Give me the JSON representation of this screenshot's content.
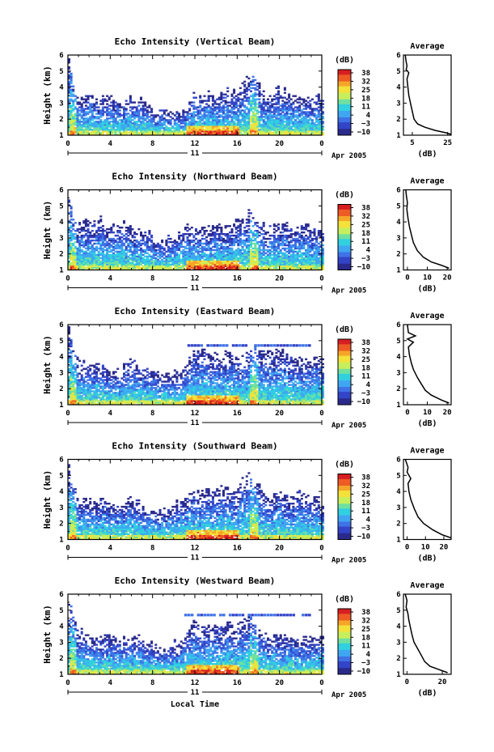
{
  "common": {
    "ylabel": "Height (km)",
    "heights": [
      1,
      2,
      3,
      4,
      5,
      6
    ],
    "height_tick_labels": [
      "1",
      "2",
      "3",
      "4",
      "5",
      "6"
    ],
    "time_ticks": [
      0,
      4,
      8,
      12,
      16,
      20,
      24
    ],
    "time_tick_labels": [
      "0",
      "4",
      "8",
      "12",
      "16",
      "20",
      "0"
    ],
    "day_label": "11",
    "month_label": "Apr 2005",
    "unit_label": "(dB)",
    "colorbar_ticks": [
      "38",
      "32",
      "25",
      "18",
      "11",
      "4",
      "−3",
      "−10"
    ],
    "colormap": [
      "#2a2a8c",
      "#3344c8",
      "#3f72e6",
      "#3fa6f2",
      "#2fd0e0",
      "#6fe0a0",
      "#c7ef5c",
      "#f4e13a",
      "#f6a529",
      "#ee5a23",
      "#d71d20"
    ],
    "average_title": "Average",
    "average_xlabel": "(dB)",
    "xlabel_bottom": "Local Time"
  },
  "chart_data": [
    {
      "type": "heatmap",
      "title": "Echo Intensity (Vertical Beam)",
      "xlabel": "",
      "ylabel": "Height (km)",
      "x_unit": "hour (local time, 11 Apr 2005)",
      "xlim": [
        0,
        24
      ],
      "ylim": [
        1,
        6
      ],
      "clim": [
        -10,
        38
      ],
      "profile": {
        "type": "line",
        "title": "Average",
        "xlabel": "(dB)",
        "x_ticks": [
          5,
          25
        ],
        "xlim": [
          0,
          27
        ],
        "ylim": [
          1,
          6
        ],
        "points": [
          [
            27,
            1.05
          ],
          [
            24,
            1.15
          ],
          [
            18,
            1.3
          ],
          [
            12,
            1.5
          ],
          [
            8,
            1.7
          ],
          [
            6,
            2
          ],
          [
            5,
            2.5
          ],
          [
            4,
            3
          ],
          [
            3,
            3.5
          ],
          [
            2.5,
            4
          ],
          [
            2,
            4.5
          ],
          [
            3,
            4.9
          ],
          [
            1.5,
            5.1
          ],
          [
            2,
            5.3
          ],
          [
            1.5,
            5.6
          ],
          [
            1,
            6
          ]
        ]
      },
      "envelope": {
        "base_hours": [
          0,
          0.5,
          1,
          2,
          3,
          4,
          5,
          6,
          7,
          8,
          9,
          10,
          11,
          12,
          13,
          14,
          15,
          16,
          17,
          18,
          19,
          20,
          21,
          22,
          23,
          24
        ],
        "top_km": [
          6,
          4.2,
          3.4,
          3.5,
          3.3,
          3.4,
          3,
          3.3,
          3.2,
          2.4,
          2.6,
          2.5,
          2.3,
          3.5,
          3.7,
          3.4,
          3.8,
          3.7,
          4.8,
          4.1,
          3.4,
          3.9,
          3.6,
          3.4,
          3.2,
          3.4
        ],
        "peak_hours": [
          0.4,
          17.5
        ],
        "strong_band_hours": [
          11,
          16
        ]
      }
    },
    {
      "type": "heatmap",
      "title": "Echo Intensity (Northward Beam)",
      "xlabel": "",
      "ylabel": "Height (km)",
      "x_unit": "hour (local time, 11 Apr 2005)",
      "xlim": [
        0,
        24
      ],
      "ylim": [
        1,
        6
      ],
      "clim": [
        -10,
        38
      ],
      "profile": {
        "type": "line",
        "title": "Average",
        "xlabel": "(dB)",
        "x_ticks": [
          0,
          10,
          20
        ],
        "xlim": [
          -2,
          22
        ],
        "ylim": [
          1,
          6
        ],
        "points": [
          [
            21,
            1.1
          ],
          [
            17,
            1.3
          ],
          [
            12,
            1.5
          ],
          [
            8,
            1.8
          ],
          [
            5,
            2.2
          ],
          [
            3,
            2.7
          ],
          [
            2,
            3.2
          ],
          [
            1,
            3.7
          ],
          [
            0.3,
            4.2
          ],
          [
            -0.3,
            4.8
          ],
          [
            0,
            5.2
          ],
          [
            -0.5,
            5.6
          ],
          [
            -0.8,
            6
          ]
        ]
      },
      "envelope": {
        "base_hours": [
          0,
          0.5,
          1,
          2,
          3,
          4,
          5,
          6,
          7,
          8,
          9,
          10,
          11,
          12,
          13,
          14,
          15,
          16,
          17,
          18,
          19,
          20,
          21,
          22,
          23,
          24
        ],
        "top_km": [
          6,
          4.4,
          4,
          4,
          4.2,
          3.6,
          4,
          3.5,
          3.4,
          3.2,
          2.8,
          3,
          3.6,
          3.8,
          3.6,
          3.7,
          3.6,
          4,
          4.6,
          4,
          3.6,
          3.9,
          3.7,
          3.8,
          3.6,
          3.6
        ],
        "peak_hours": [
          0.4,
          17.5
        ],
        "strong_band_hours": [
          11,
          16
        ]
      }
    },
    {
      "type": "heatmap",
      "title": "Echo Intensity (Eastward Beam)",
      "xlabel": "",
      "ylabel": "Height (km)",
      "x_unit": "hour (local time, 11 Apr 2005)",
      "xlim": [
        0,
        24
      ],
      "ylim": [
        1,
        6
      ],
      "clim": [
        -10,
        38
      ],
      "profile": {
        "type": "line",
        "title": "Average",
        "xlabel": "(dB)",
        "x_ticks": [
          0,
          10,
          20
        ],
        "xlim": [
          -2,
          22
        ],
        "ylim": [
          1,
          6
        ],
        "points": [
          [
            21,
            1.1
          ],
          [
            17,
            1.3
          ],
          [
            12,
            1.6
          ],
          [
            9,
            1.9
          ],
          [
            7,
            2.3
          ],
          [
            5,
            2.7
          ],
          [
            3,
            3.2
          ],
          [
            2,
            3.6
          ],
          [
            1,
            4.1
          ],
          [
            0.5,
            4.6
          ],
          [
            3,
            4.9
          ],
          [
            0,
            5.1
          ],
          [
            4,
            5.3
          ],
          [
            0.5,
            5.5
          ],
          [
            0,
            6
          ]
        ]
      },
      "envelope": {
        "base_hours": [
          0,
          0.5,
          1,
          2,
          3,
          4,
          5,
          6,
          7,
          8,
          9,
          10,
          11,
          12,
          13,
          14,
          15,
          16,
          17,
          18,
          19,
          20,
          21,
          22,
          23,
          24
        ],
        "top_km": [
          6,
          4.5,
          3.9,
          3.4,
          3.7,
          3.1,
          3.2,
          3.7,
          3.4,
          3,
          2.8,
          2.9,
          3.2,
          4.6,
          4.3,
          4,
          4.2,
          3.9,
          4.4,
          4.5,
          4.2,
          4.3,
          4,
          3.8,
          4.1,
          4
        ],
        "peak_hours": [
          0.4,
          17.5
        ],
        "strong_band_hours": [
          11,
          16
        ],
        "streak_km": 4.7,
        "streak_hours": [
          11,
          23
        ]
      }
    },
    {
      "type": "heatmap",
      "title": "Echo Intensity (Southward Beam)",
      "xlabel": "",
      "ylabel": "Height (km)",
      "x_unit": "hour (local time, 11 Apr 2005)",
      "xlim": [
        0,
        24
      ],
      "ylim": [
        1,
        6
      ],
      "clim": [
        -10,
        38
      ],
      "profile": {
        "type": "line",
        "title": "Average",
        "xlabel": "(dB)",
        "x_ticks": [
          0,
          10,
          20
        ],
        "xlim": [
          -2,
          24
        ],
        "ylim": [
          1,
          6
        ],
        "points": [
          [
            24,
            1.1
          ],
          [
            19,
            1.3
          ],
          [
            14,
            1.6
          ],
          [
            9,
            2
          ],
          [
            6,
            2.4
          ],
          [
            4,
            2.9
          ],
          [
            2,
            3.5
          ],
          [
            1,
            4
          ],
          [
            0.5,
            4.5
          ],
          [
            2,
            4.8
          ],
          [
            0,
            5.2
          ],
          [
            0.5,
            5.5
          ],
          [
            -1,
            6
          ]
        ]
      },
      "envelope": {
        "base_hours": [
          0,
          0.5,
          1,
          2,
          3,
          4,
          5,
          6,
          7,
          8,
          9,
          10,
          11,
          12,
          13,
          14,
          15,
          16,
          17,
          18,
          19,
          20,
          21,
          22,
          23,
          24
        ],
        "top_km": [
          6,
          4.2,
          3.5,
          3.3,
          3.6,
          3.4,
          3.2,
          3.6,
          3,
          3,
          2.7,
          3,
          3.6,
          4,
          4,
          4.2,
          4.3,
          4,
          5.2,
          4.3,
          3.5,
          3.9,
          3.4,
          4,
          3.8,
          3.4
        ],
        "peak_hours": [
          0.4,
          17.5
        ],
        "strong_band_hours": [
          11,
          16
        ]
      }
    },
    {
      "type": "heatmap",
      "title": "Echo Intensity (Westward Beam)",
      "xlabel": "Local Time",
      "ylabel": "Height (km)",
      "x_unit": "hour (local time, 11 Apr 2005)",
      "xlim": [
        0,
        24
      ],
      "ylim": [
        1,
        6
      ],
      "clim": [
        -10,
        38
      ],
      "profile": {
        "type": "line",
        "title": "Average",
        "xlabel": "(dB)",
        "x_ticks": [
          0,
          20
        ],
        "xlim": [
          -2,
          25
        ],
        "ylim": [
          1,
          6
        ],
        "points": [
          [
            23,
            1.1
          ],
          [
            18,
            1.3
          ],
          [
            13,
            1.5
          ],
          [
            10,
            1.8
          ],
          [
            8,
            2.2
          ],
          [
            6,
            2.6
          ],
          [
            4,
            3
          ],
          [
            3,
            3.4
          ],
          [
            2,
            3.9
          ],
          [
            1,
            4.4
          ],
          [
            0.5,
            4.8
          ],
          [
            -0.5,
            5.2
          ],
          [
            0,
            5.6
          ],
          [
            -1,
            6
          ]
        ]
      },
      "envelope": {
        "base_hours": [
          0,
          0.5,
          1,
          2,
          3,
          4,
          5,
          6,
          7,
          8,
          9,
          10,
          11,
          12,
          13,
          14,
          15,
          16,
          17,
          18,
          19,
          20,
          21,
          22,
          23,
          24
        ],
        "top_km": [
          6,
          4.6,
          3.8,
          3.4,
          3.2,
          3.4,
          3,
          3.5,
          3.3,
          2.8,
          2.7,
          2.9,
          3,
          4.2,
          4,
          3.9,
          4.1,
          3.9,
          4.7,
          3.8,
          3.4,
          3.5,
          3.3,
          3.2,
          3.4,
          3.2
        ],
        "peak_hours": [
          0.4,
          17.5
        ],
        "strong_band_hours": [
          11,
          16
        ],
        "streak_km": 4.7,
        "streak_hours": [
          11,
          23
        ]
      }
    }
  ]
}
